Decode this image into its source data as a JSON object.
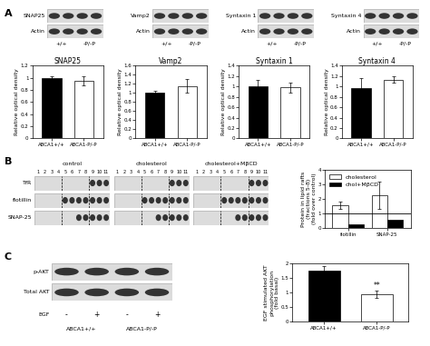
{
  "panel_labels": [
    "A",
    "B",
    "C"
  ],
  "blots": {
    "A": [
      {
        "rows": [
          "SNAP25",
          "Actin"
        ],
        "lanes": [
          "+/+",
          "-P/-P"
        ]
      },
      {
        "rows": [
          "Vamp2",
          "Actin"
        ],
        "lanes": [
          "+/+",
          "-P/-P"
        ]
      },
      {
        "rows": [
          "Syntaxin 1",
          "Actin"
        ],
        "lanes": [
          "+/+",
          "-P/-P"
        ]
      },
      {
        "rows": [
          "Syntaxin 4",
          "Actin"
        ],
        "lanes": [
          "+/+",
          "-P/-P"
        ]
      }
    ],
    "B": {
      "row_labels": [
        "TfR",
        "flotillin",
        "SNAP-25"
      ],
      "panels": [
        "control",
        "cholesterol",
        "cholesterol+MβCD"
      ],
      "fractions": [
        "1",
        "2",
        "3",
        "4",
        "5",
        "6",
        "7",
        "8",
        "9",
        "10",
        "11"
      ]
    },
    "C": {
      "rows": [
        "p-AKT",
        "Total AKT"
      ],
      "treatment_label": "EGF",
      "treatments": [
        "-",
        "+",
        "-",
        "+"
      ],
      "lanes": [
        "ABCA1+/+",
        "ABCA1-P/-P"
      ]
    }
  },
  "chart_data": [
    {
      "type": "bar",
      "title": "SNAP25",
      "y_label": "Relative optical density",
      "categories": [
        "ABCA1+/+",
        "ABCA1-P/-P"
      ],
      "values": [
        1.0,
        0.95
      ],
      "errors": [
        0.02,
        0.08
      ],
      "colors": [
        "#000000",
        "#ffffff"
      ],
      "ylim": [
        0,
        1.2
      ],
      "yticks": [
        0,
        0.2,
        0.4,
        0.6,
        0.8,
        1,
        1.2
      ]
    },
    {
      "type": "bar",
      "title": "Vamp2",
      "y_label": "Relative optical density",
      "categories": [
        "ABCA1+/+",
        "ABCA1-P/-P"
      ],
      "values": [
        1.0,
        1.15
      ],
      "errors": [
        0.04,
        0.15
      ],
      "colors": [
        "#000000",
        "#ffffff"
      ],
      "ylim": [
        0,
        1.6
      ],
      "yticks": [
        0,
        0.2,
        0.4,
        0.6,
        0.8,
        1,
        1.2,
        1.4,
        1.6
      ]
    },
    {
      "type": "bar",
      "title": "Syntaxin 1",
      "y_label": "Relative optical density",
      "categories": [
        "ABCA1+/+",
        "ABCA1-P/-P"
      ],
      "values": [
        1.0,
        0.98
      ],
      "errors": [
        0.12,
        0.1
      ],
      "colors": [
        "#000000",
        "#ffffff"
      ],
      "ylim": [
        0,
        1.4
      ],
      "yticks": [
        0,
        0.2,
        0.4,
        0.6,
        0.8,
        1,
        1.2,
        1.4
      ]
    },
    {
      "type": "bar",
      "title": "Syntaxin 4",
      "y_label": "Relative optical density",
      "categories": [
        "ABCA1+/+",
        "ABCA1-P/-P"
      ],
      "values": [
        0.97,
        1.13
      ],
      "errors": [
        0.2,
        0.06
      ],
      "colors": [
        "#000000",
        "#ffffff"
      ],
      "ylim": [
        0,
        1.4
      ],
      "yticks": [
        0,
        0.2,
        0.4,
        0.6,
        0.8,
        1,
        1.2,
        1.4
      ]
    },
    {
      "type": "bar",
      "y_label": "Protein in lipid rafts\n(fractions 5-8)\n(fold over control)",
      "categories": [
        "flotillin",
        "SNAP-25"
      ],
      "series": [
        {
          "name": "cholesterol",
          "color": "#ffffff",
          "values": [
            1.6,
            2.25
          ],
          "errors": [
            0.25,
            0.9
          ]
        },
        {
          "name": "chol+MβCD",
          "color": "#000000",
          "values": [
            0.3,
            0.6
          ]
        }
      ],
      "hline": 1,
      "legend": "upper left",
      "ylim": [
        0,
        4
      ],
      "yticks": [
        0,
        1,
        2,
        3,
        4
      ]
    },
    {
      "type": "bar",
      "y_label": "EGF stimulated AKT\nphosphorylation\n(fold basal)",
      "categories": [
        "ABCA1+/+",
        "ABCA1-P/-P"
      ],
      "values": [
        1.75,
        0.93
      ],
      "errors": [
        0.15,
        0.12
      ],
      "colors": [
        "#000000",
        "#ffffff"
      ],
      "ylim": [
        0,
        2
      ],
      "yticks": [
        0,
        0.5,
        1,
        1.5,
        2
      ],
      "annotations": [
        {
          "text": "**",
          "category": "ABCA1-P/-P"
        }
      ]
    }
  ]
}
